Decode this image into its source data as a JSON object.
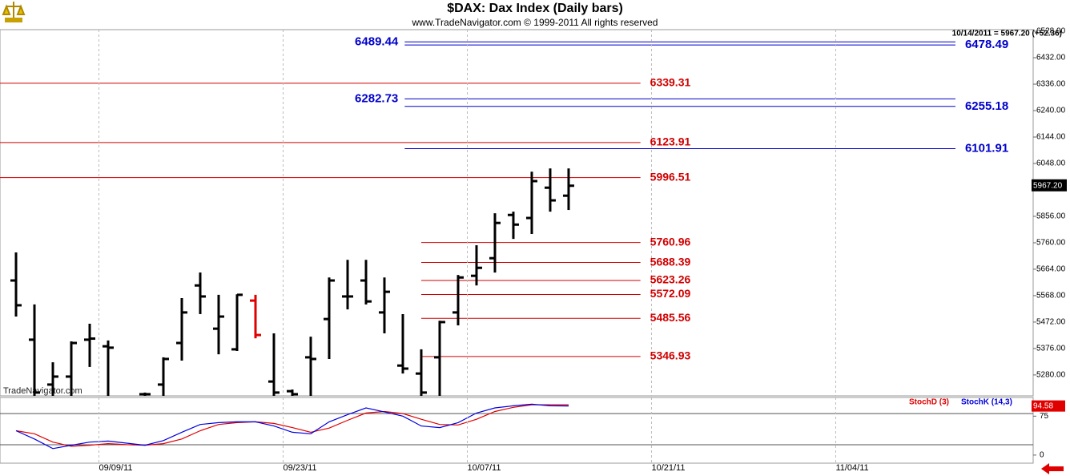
{
  "chart_data": [
    {
      "type": "ohlc",
      "title": "$DAX:  Dax Index  (Daily bars)",
      "subtitle": "www.TradeNavigator.com © 1999-2011 All rights reserved",
      "info": "10/14/2011 = 5967.20 (+52.36)",
      "watermark": "TradeNavigator.com",
      "last_label": "5967.20",
      "x": [
        0,
        1,
        2,
        3,
        4,
        5,
        7,
        8,
        9,
        10,
        11,
        12,
        13,
        14,
        15,
        16,
        17,
        18,
        19,
        20,
        21,
        22,
        23,
        24,
        25,
        26,
        27,
        28,
        29,
        30
      ],
      "open": [
        5623,
        5408,
        5245,
        5274,
        5408,
        5384,
        5210,
        5245,
        5396,
        5605,
        5448,
        5373,
        5550,
        5256,
        5221,
        5344,
        5483,
        5565,
        5623,
        5507,
        5314,
        5285,
        5344,
        5507,
        5640,
        5704,
        5861,
        5850,
        5960,
        5931
      ],
      "high": [
        5725,
        5536,
        5326,
        5402,
        5466,
        5405,
        5216,
        5344,
        5559,
        5652,
        5571,
        5573,
        5571,
        5431,
        5227,
        5419,
        5634,
        5698,
        5698,
        5634,
        5501,
        5373,
        5477,
        5643,
        5751,
        5867,
        5873,
        6018,
        6030,
        6030
      ],
      "low": [
        5492,
        5190,
        5190,
        5190,
        5309,
        5190,
        5190,
        5190,
        5332,
        5501,
        5355,
        5367,
        5413,
        5190,
        5190,
        5190,
        5338,
        5518,
        5536,
        5431,
        5285,
        5190,
        5190,
        5460,
        5605,
        5652,
        5774,
        5792,
        5873,
        5879
      ],
      "close": [
        5533,
        5216,
        5274,
        5396,
        5412,
        5379,
        5210,
        5338,
        5507,
        5565,
        5492,
        5571,
        5425,
        5216,
        5210,
        5338,
        5623,
        5565,
        5547,
        5582,
        5303,
        5216,
        5472,
        5634,
        5669,
        5832,
        5826,
        5984,
        5914,
        5967.2
      ],
      "colors": [
        "#000000",
        "#000000",
        "#000000",
        "#000000",
        "#000000",
        "#000000",
        "#000000",
        "#000000",
        "#000000",
        "#000000",
        "#000000",
        "#000000",
        "#e00000",
        "#000000",
        "#000000",
        "#000000",
        "#000000",
        "#000000",
        "#000000",
        "#000000",
        "#000000",
        "#000000",
        "#000000",
        "#000000",
        "#000000",
        "#000000",
        "#000000",
        "#000000",
        "#000000",
        "#000000"
      ],
      "levels": [
        {
          "value": 6339.31,
          "color": "#d00000",
          "start": -0.87,
          "end": 33.9,
          "side": "right"
        },
        {
          "value": 6123.91,
          "color": "#d00000",
          "start": -0.87,
          "end": 33.9,
          "side": "right"
        },
        {
          "value": 5996.51,
          "color": "#d00000",
          "start": -0.87,
          "end": 33.9,
          "side": "right"
        },
        {
          "value": 5760.96,
          "color": "#d00000",
          "start": 22,
          "end": 33.9,
          "side": "right"
        },
        {
          "value": 5688.39,
          "color": "#d00000",
          "start": 22,
          "end": 33.9,
          "side": "right"
        },
        {
          "value": 5623.26,
          "color": "#d00000",
          "start": 22,
          "end": 33.9,
          "side": "right"
        },
        {
          "value": 5572.09,
          "color": "#d00000",
          "start": 22,
          "end": 33.9,
          "side": "right"
        },
        {
          "value": 5485.56,
          "color": "#d00000",
          "start": 22,
          "end": 33.9,
          "side": "right"
        },
        {
          "value": 5346.93,
          "color": "#d00000",
          "start": 22,
          "end": 33.9,
          "side": "right"
        },
        {
          "value": 6489.44,
          "color": "#0000cc",
          "start": 21.1,
          "end": 51,
          "side": "left"
        },
        {
          "value": 6478.49,
          "color": "#0000cc",
          "start": 21.1,
          "end": 51,
          "side": "right"
        },
        {
          "value": 6282.73,
          "color": "#0000cc",
          "start": 21.1,
          "end": 51,
          "side": "left"
        },
        {
          "value": 6255.18,
          "color": "#0000cc",
          "start": 21.1,
          "end": 51,
          "side": "right"
        },
        {
          "value": 6101.91,
          "color": "#0000cc",
          "start": 21.1,
          "end": 51,
          "side": "right"
        }
      ],
      "xlim": [
        -0.87,
        55.22
      ],
      "xticks": [
        {
          "value": 4.5,
          "label": "09/09/11"
        },
        {
          "value": 14.5,
          "label": "09/23/11"
        },
        {
          "value": 24.5,
          "label": "10/07/11"
        },
        {
          "value": 34.5,
          "label": "10/21/11"
        },
        {
          "value": 44.5,
          "label": "11/04/11"
        }
      ],
      "ylim": [
        5204,
        6534
      ],
      "yticks": [
        {
          "value": 5280,
          "label": "5280.00"
        },
        {
          "value": 5376,
          "label": "5376.00"
        },
        {
          "value": 5472,
          "label": "5472.00"
        },
        {
          "value": 5568,
          "label": "5568.00"
        },
        {
          "value": 5664,
          "label": "5664.00"
        },
        {
          "value": 5760,
          "label": "5760.00"
        },
        {
          "value": 5856,
          "label": "5856.00"
        },
        {
          "value": 6048,
          "label": "6048.00"
        },
        {
          "value": 6144,
          "label": "6144.00"
        },
        {
          "value": 6240,
          "label": "6240.00"
        },
        {
          "value": 6336,
          "label": "6336.00"
        },
        {
          "value": 6432,
          "label": "6432.00"
        },
        {
          "value": 6528,
          "label": "6528.00"
        }
      ],
      "grid": true
    },
    {
      "type": "line",
      "x": [
        0,
        1,
        2,
        3,
        4,
        5,
        6,
        7,
        8,
        9,
        10,
        11,
        12,
        13,
        14,
        15,
        16,
        17,
        18,
        19,
        20,
        21,
        22,
        23,
        24,
        25,
        26,
        27,
        28,
        29,
        30
      ],
      "series": [
        {
          "name": "StochD (3)",
          "color": "#e00000",
          "values": [
            47,
            41,
            25,
            17,
            19,
            22,
            20,
            19,
            22,
            31,
            47,
            59,
            62.5,
            64,
            61,
            53,
            44,
            52,
            67,
            81,
            84,
            80,
            69,
            59,
            58,
            69,
            84,
            92,
            97,
            97,
            97
          ]
        },
        {
          "name": "StochK (14,3)",
          "color": "#0000e0",
          "values": [
            47,
            31,
            12.5,
            19,
            25,
            27,
            23,
            19,
            28,
            44,
            59,
            62.5,
            64,
            64,
            56,
            44,
            41,
            64,
            78,
            91,
            83,
            75,
            56,
            53,
            62.5,
            81,
            91,
            95,
            98,
            95,
            94.58
          ]
        }
      ],
      "levels": [
        20,
        80
      ],
      "xlim": [
        -0.87,
        55.22
      ],
      "ylim": [
        -15.6,
        111
      ],
      "yticks": [
        0,
        75
      ]
    }
  ]
}
